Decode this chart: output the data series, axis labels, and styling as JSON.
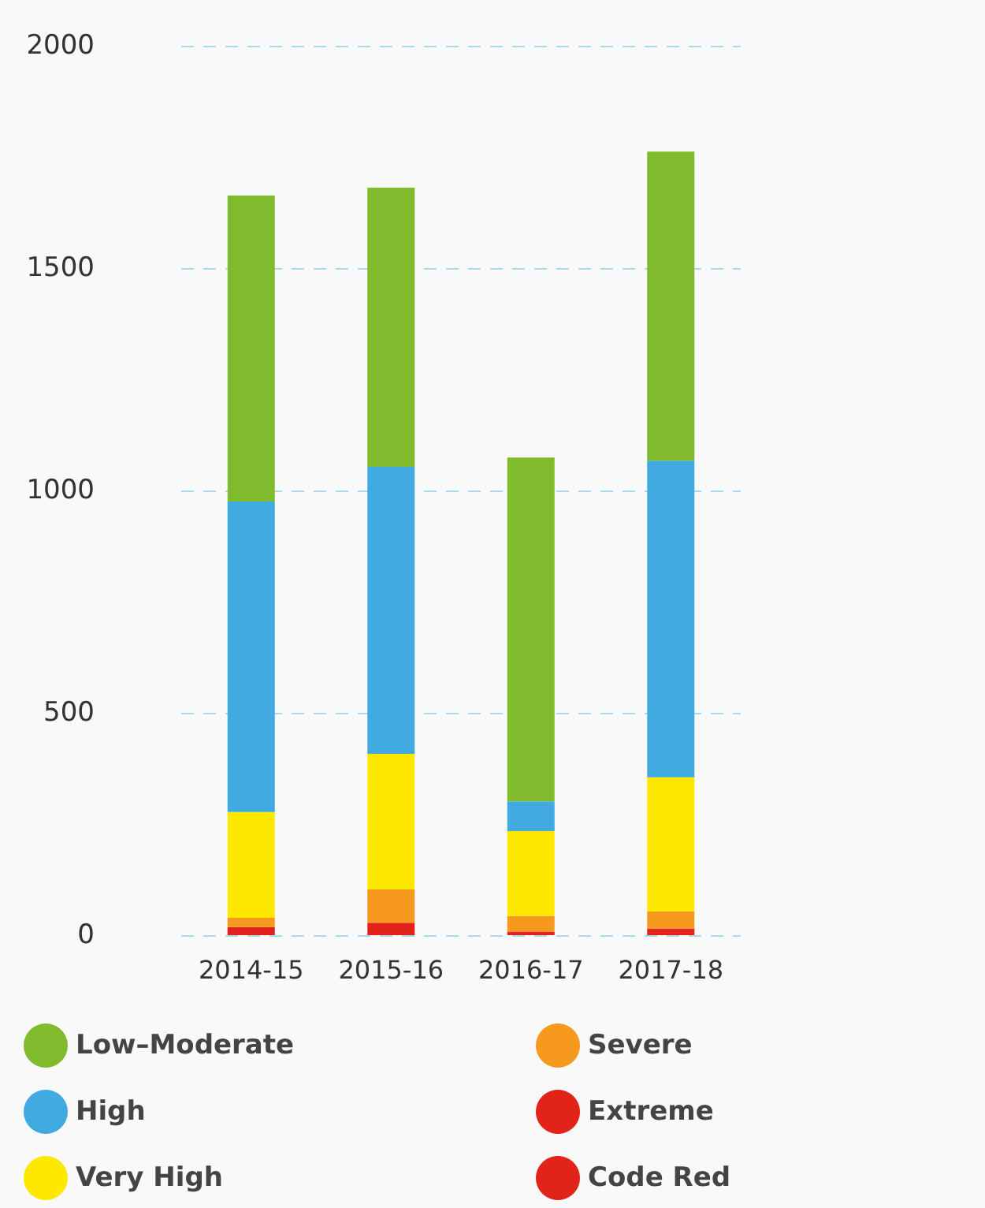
{
  "chart_data": {
    "type": "bar",
    "stacked": true,
    "categories": [
      "2014-15",
      "2015-16",
      "2016-17",
      "2017-18"
    ],
    "series": [
      {
        "name": "Code Red",
        "color": "#e2231a",
        "values": [
          null,
          null,
          null,
          null
        ]
      },
      {
        "name": "Extreme",
        "color": "#e2231a",
        "values": [
          18,
          28,
          8,
          15
        ]
      },
      {
        "name": "Severe",
        "color": "#f7991f",
        "values": [
          21,
          75,
          35,
          38
        ]
      },
      {
        "name": "Very High",
        "color": "#ffe800",
        "values": [
          238,
          305,
          191,
          302
        ]
      },
      {
        "name": "High",
        "color": "#41aae0",
        "values": [
          698,
          645,
          67,
          712
        ]
      },
      {
        "name": "Low–Moderate",
        "color": "#80ba2d",
        "values": [
          688,
          628,
          773,
          695
        ]
      }
    ],
    "ylim": [
      0,
      2000
    ],
    "yticks": [
      0,
      500,
      1000,
      1500,
      2000
    ],
    "grid": "y",
    "legend": "bottom"
  }
}
